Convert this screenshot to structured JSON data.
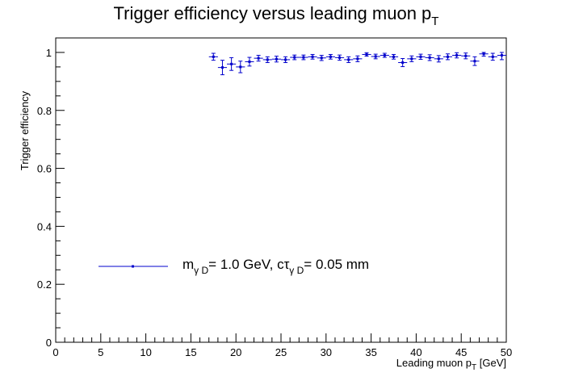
{
  "chart_data": {
    "type": "scatter",
    "title": "Trigger efficiency versus leading muon p",
    "title_sub": "T",
    "xlabel": "Leading muon p",
    "xlabel_sub": "T",
    "xlabel_unit": " [GeV]",
    "ylabel": "Trigger efficiency",
    "xlim": [
      0,
      50
    ],
    "ylim": [
      0,
      1.05
    ],
    "xticks": [
      "0",
      "5",
      "10",
      "15",
      "20",
      "25",
      "30",
      "35",
      "40",
      "45",
      "50"
    ],
    "yticks": [
      "0",
      "0.2",
      "0.4",
      "0.6",
      "0.8",
      "1"
    ],
    "grid": false,
    "legend_placement": "lower-left",
    "series": [
      {
        "color": "#0000cc",
        "legend": {
          "m": "m",
          "m_sub": "γ D",
          "mid": "= 1.0 GeV, cτ",
          "ctau_sub": "γ D",
          "end": "= 0.05 mm"
        },
        "points": [
          {
            "x": 17.5,
            "y": 0.985,
            "err": 0.012
          },
          {
            "x": 18.5,
            "y": 0.948,
            "err": 0.025
          },
          {
            "x": 19.5,
            "y": 0.96,
            "err": 0.022
          },
          {
            "x": 20.5,
            "y": 0.95,
            "err": 0.02
          },
          {
            "x": 21.5,
            "y": 0.968,
            "err": 0.015
          },
          {
            "x": 22.5,
            "y": 0.98,
            "err": 0.01
          },
          {
            "x": 23.5,
            "y": 0.975,
            "err": 0.01
          },
          {
            "x": 24.5,
            "y": 0.977,
            "err": 0.01
          },
          {
            "x": 25.5,
            "y": 0.975,
            "err": 0.01
          },
          {
            "x": 26.5,
            "y": 0.983,
            "err": 0.008
          },
          {
            "x": 27.5,
            "y": 0.983,
            "err": 0.008
          },
          {
            "x": 28.5,
            "y": 0.985,
            "err": 0.008
          },
          {
            "x": 29.5,
            "y": 0.981,
            "err": 0.009
          },
          {
            "x": 30.5,
            "y": 0.985,
            "err": 0.008
          },
          {
            "x": 31.5,
            "y": 0.982,
            "err": 0.009
          },
          {
            "x": 32.5,
            "y": 0.975,
            "err": 0.01
          },
          {
            "x": 33.5,
            "y": 0.978,
            "err": 0.01
          },
          {
            "x": 34.5,
            "y": 0.993,
            "err": 0.006
          },
          {
            "x": 35.5,
            "y": 0.986,
            "err": 0.008
          },
          {
            "x": 36.5,
            "y": 0.99,
            "err": 0.007
          },
          {
            "x": 37.5,
            "y": 0.985,
            "err": 0.008
          },
          {
            "x": 38.5,
            "y": 0.965,
            "err": 0.014
          },
          {
            "x": 39.5,
            "y": 0.978,
            "err": 0.01
          },
          {
            "x": 40.5,
            "y": 0.985,
            "err": 0.009
          },
          {
            "x": 41.5,
            "y": 0.982,
            "err": 0.01
          },
          {
            "x": 42.5,
            "y": 0.978,
            "err": 0.011
          },
          {
            "x": 43.5,
            "y": 0.985,
            "err": 0.01
          },
          {
            "x": 44.5,
            "y": 0.99,
            "err": 0.009
          },
          {
            "x": 45.5,
            "y": 0.988,
            "err": 0.01
          },
          {
            "x": 46.5,
            "y": 0.97,
            "err": 0.015
          },
          {
            "x": 47.5,
            "y": 0.995,
            "err": 0.008
          },
          {
            "x": 48.5,
            "y": 0.985,
            "err": 0.012
          },
          {
            "x": 49.5,
            "y": 0.99,
            "err": 0.015
          }
        ]
      }
    ]
  }
}
